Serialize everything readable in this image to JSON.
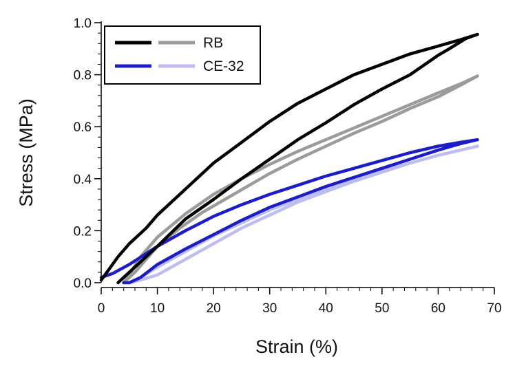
{
  "chart_data": {
    "type": "line",
    "title": "",
    "xlabel": "Strain (%)",
    "ylabel": "Stress (MPa)",
    "xlim": [
      0,
      70
    ],
    "ylim": [
      0,
      1.0
    ],
    "x_ticks": [
      "0",
      "10",
      "20",
      "30",
      "40",
      "50",
      "60",
      "70"
    ],
    "y_ticks": [
      "0.0",
      "0.2",
      "0.4",
      "0.6",
      "0.8",
      "1.0"
    ],
    "grid": false,
    "legend_position": "top-left",
    "legend": [
      {
        "label": "RB",
        "colors": [
          "#000000",
          "#9b9b9b"
        ]
      },
      {
        "label": "CE-32",
        "colors": [
          "#1c1cc8",
          "#bdbdf0"
        ]
      }
    ],
    "series": [
      {
        "color": "#9b9b9b",
        "points": [
          [
            4,
            0
          ],
          [
            6,
            0.04
          ],
          [
            8,
            0.09
          ],
          [
            10,
            0.14
          ],
          [
            14,
            0.21
          ],
          [
            18,
            0.27
          ],
          [
            22,
            0.32
          ],
          [
            26,
            0.37
          ],
          [
            30,
            0.42
          ],
          [
            35,
            0.475
          ],
          [
            40,
            0.525
          ],
          [
            45,
            0.575
          ],
          [
            50,
            0.62
          ],
          [
            55,
            0.67
          ],
          [
            60,
            0.715
          ],
          [
            64,
            0.76
          ],
          [
            67,
            0.795
          ],
          [
            64,
            0.765
          ],
          [
            60,
            0.73
          ],
          [
            55,
            0.685
          ],
          [
            50,
            0.64
          ],
          [
            45,
            0.595
          ],
          [
            40,
            0.55
          ],
          [
            35,
            0.505
          ],
          [
            30,
            0.455
          ],
          [
            25,
            0.4
          ],
          [
            20,
            0.34
          ],
          [
            15,
            0.265
          ],
          [
            10,
            0.175
          ],
          [
            7,
            0.1
          ],
          [
            5,
            0.03
          ],
          [
            4,
            0
          ]
        ]
      },
      {
        "color": "#bdbdf0",
        "points": [
          [
            5,
            0
          ],
          [
            7,
            0.02
          ],
          [
            10,
            0.06
          ],
          [
            15,
            0.12
          ],
          [
            20,
            0.18
          ],
          [
            25,
            0.23
          ],
          [
            30,
            0.28
          ],
          [
            35,
            0.32
          ],
          [
            40,
            0.36
          ],
          [
            45,
            0.395
          ],
          [
            50,
            0.43
          ],
          [
            55,
            0.46
          ],
          [
            60,
            0.49
          ],
          [
            65,
            0.515
          ],
          [
            67,
            0.525
          ],
          [
            64,
            0.51
          ],
          [
            60,
            0.49
          ],
          [
            55,
            0.46
          ],
          [
            50,
            0.425
          ],
          [
            45,
            0.39
          ],
          [
            40,
            0.35
          ],
          [
            35,
            0.31
          ],
          [
            30,
            0.26
          ],
          [
            25,
            0.21
          ],
          [
            20,
            0.15
          ],
          [
            15,
            0.09
          ],
          [
            10,
            0.03
          ],
          [
            7,
            0.01
          ],
          [
            5,
            0
          ]
        ]
      },
      {
        "color": "#1c1cc8",
        "points": [
          [
            0,
            0.02
          ],
          [
            2,
            0.035
          ],
          [
            5,
            0.07
          ],
          [
            10,
            0.14
          ],
          [
            15,
            0.2
          ],
          [
            20,
            0.255
          ],
          [
            25,
            0.3
          ],
          [
            30,
            0.34
          ],
          [
            35,
            0.375
          ],
          [
            40,
            0.41
          ],
          [
            45,
            0.44
          ],
          [
            50,
            0.47
          ],
          [
            55,
            0.5
          ],
          [
            60,
            0.525
          ],
          [
            64,
            0.54
          ],
          [
            67,
            0.55
          ],
          [
            64,
            0.535
          ],
          [
            60,
            0.51
          ],
          [
            55,
            0.475
          ],
          [
            50,
            0.44
          ],
          [
            45,
            0.405
          ],
          [
            40,
            0.37
          ],
          [
            35,
            0.33
          ],
          [
            30,
            0.29
          ],
          [
            25,
            0.24
          ],
          [
            20,
            0.185
          ],
          [
            15,
            0.13
          ],
          [
            10,
            0.07
          ],
          [
            7,
            0.02
          ],
          [
            5,
            0
          ],
          [
            4,
            0
          ]
        ]
      },
      {
        "color": "#000000",
        "points": [
          [
            0,
            0.01
          ],
          [
            1,
            0.04
          ],
          [
            3,
            0.1
          ],
          [
            5,
            0.15
          ],
          [
            8,
            0.21
          ],
          [
            10,
            0.26
          ],
          [
            15,
            0.36
          ],
          [
            20,
            0.46
          ],
          [
            25,
            0.54
          ],
          [
            30,
            0.62
          ],
          [
            35,
            0.69
          ],
          [
            40,
            0.745
          ],
          [
            45,
            0.8
          ],
          [
            50,
            0.84
          ],
          [
            55,
            0.88
          ],
          [
            60,
            0.91
          ],
          [
            64,
            0.935
          ],
          [
            67,
            0.955
          ],
          [
            65,
            0.94
          ],
          [
            62,
            0.9
          ],
          [
            60,
            0.875
          ],
          [
            55,
            0.8
          ],
          [
            50,
            0.745
          ],
          [
            45,
            0.685
          ],
          [
            40,
            0.615
          ],
          [
            35,
            0.55
          ],
          [
            30,
            0.475
          ],
          [
            25,
            0.4
          ],
          [
            20,
            0.32
          ],
          [
            15,
            0.245
          ],
          [
            10,
            0.14
          ],
          [
            6,
            0.06
          ],
          [
            4,
            0.02
          ],
          [
            3,
            0
          ]
        ]
      }
    ]
  }
}
